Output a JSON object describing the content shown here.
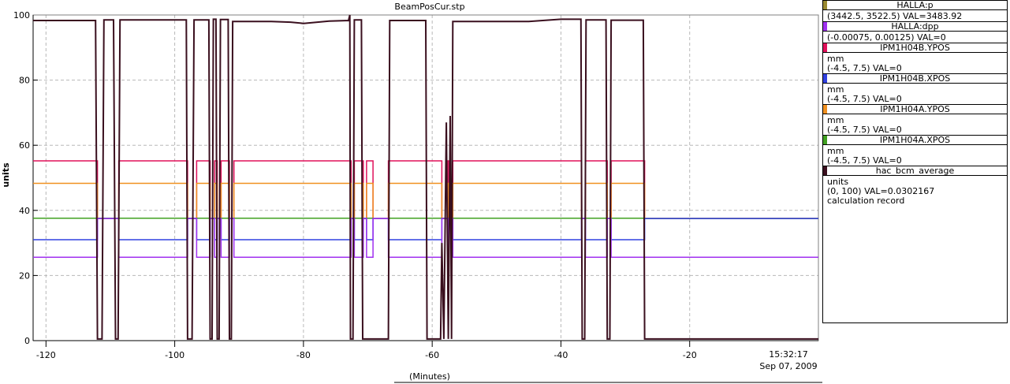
{
  "chart_data": {
    "type": "line",
    "title": "BeamPosCur.stp",
    "xlabel": "(Minutes)",
    "ylabel": "units",
    "xlim": [
      -122,
      0
    ],
    "ylim": [
      0,
      100
    ],
    "x_ticks": [
      -120,
      -100,
      -80,
      -60,
      -40,
      -20
    ],
    "y_ticks": [
      0,
      20,
      40,
      60,
      80,
      100
    ],
    "timestamp_time": "15:32:17",
    "timestamp_date": "Sep 07, 2009",
    "grid": true,
    "series": [
      {
        "name": "IPM1H04B.YPOS",
        "color": "#e0105a",
        "level": 55.2,
        "gaps": [
          [
            -112,
            -108.7
          ],
          [
            -98,
            -96.6
          ],
          [
            -94.5,
            -93.8
          ],
          [
            -93.4,
            -92.8
          ],
          [
            -91.5,
            -90.8
          ],
          [
            -72.6,
            -72.1
          ],
          [
            -70.7,
            -70.2
          ],
          [
            -69.2,
            -66.8
          ],
          [
            -58.5,
            -57.6
          ],
          [
            -57.4,
            -56.8
          ],
          [
            -36.8,
            -36.2
          ],
          [
            -32.8,
            -32.2
          ]
        ],
        "gap_level": 37.5,
        "end": -27
      },
      {
        "name": "IPM1H04A.YPOS",
        "color": "#f09020",
        "level": 48.3,
        "gaps": [
          [
            -112,
            -108.7
          ],
          [
            -98,
            -96.6
          ],
          [
            -94.5,
            -93.8
          ],
          [
            -93.4,
            -92.8
          ],
          [
            -91.5,
            -90.8
          ],
          [
            -72.6,
            -72.1
          ],
          [
            -70.7,
            -70.2
          ],
          [
            -69.2,
            -66.8
          ],
          [
            -58.5,
            -57.6
          ],
          [
            -57.4,
            -56.8
          ],
          [
            -36.8,
            -36.2
          ],
          [
            -32.8,
            -32.2
          ]
        ],
        "gap_level": 37.5,
        "end": -27
      },
      {
        "name": "IPM1H04A.XPOS",
        "color": "#40a020",
        "level": 37.6,
        "gaps": [
          [
            -72.6,
            -72.1
          ],
          [
            -69.2,
            -66.8
          ]
        ],
        "gap_level": 37.5,
        "end": -27
      },
      {
        "name": "IPM1H04B.XPOS",
        "color": "#3040e0",
        "level": 31.0,
        "gaps": [
          [
            -112,
            -108.7
          ],
          [
            -98,
            -96.6
          ],
          [
            -94.5,
            -93.8
          ],
          [
            -93.4,
            -92.8
          ],
          [
            -91.5,
            -90.8
          ],
          [
            -72.6,
            -72.1
          ],
          [
            -70.7,
            -70.2
          ],
          [
            -69.2,
            -66.8
          ],
          [
            -58.5,
            -57.6
          ],
          [
            -57.4,
            -56.8
          ],
          [
            -36.8,
            -36.2
          ],
          [
            -32.8,
            -32.2
          ]
        ],
        "gap_level": 37.5,
        "end": -27
      },
      {
        "name": "HALLA:dpp",
        "color": "#a030f0",
        "level": 25.6,
        "gaps": [
          [
            -112,
            -108.7
          ],
          [
            -98,
            -96.6
          ],
          [
            -94.5,
            -93.8
          ],
          [
            -93.4,
            -92.8
          ],
          [
            -91.5,
            -90.8
          ],
          [
            -72.6,
            -72.1
          ],
          [
            -70.7,
            -70.2
          ],
          [
            -69.2,
            -66.8
          ],
          [
            -58.5,
            -57.6
          ],
          [
            -57.4,
            -56.8
          ],
          [
            -36.8,
            -36.2
          ],
          [
            -32.8,
            -32.2
          ]
        ],
        "gap_level": 37.5,
        "end": 0
      },
      {
        "name": "hac_bcm_average",
        "color": "#3a0f1e",
        "points": [
          [
            -122,
            98.3
          ],
          [
            -112.3,
            98.3
          ],
          [
            -112,
            0.5
          ],
          [
            -111.3,
            0.5
          ],
          [
            -111,
            98.5
          ],
          [
            -109.5,
            98.5
          ],
          [
            -109.2,
            0.5
          ],
          [
            -108.8,
            0.5
          ],
          [
            -108.5,
            98.5
          ],
          [
            -98.2,
            98.5
          ],
          [
            -98,
            0.5
          ],
          [
            -97.3,
            0.5
          ],
          [
            -97,
            98.5
          ],
          [
            -94.7,
            98.5
          ],
          [
            -94.5,
            0.5
          ],
          [
            -94.2,
            0.5
          ],
          [
            -94,
            98.7
          ],
          [
            -93.6,
            98.7
          ],
          [
            -93.4,
            0.5
          ],
          [
            -93.1,
            0.5
          ],
          [
            -92.9,
            98.6
          ],
          [
            -91.7,
            98.6
          ],
          [
            -91.5,
            0.5
          ],
          [
            -91.2,
            0.5
          ],
          [
            -91,
            98
          ],
          [
            -85,
            98
          ],
          [
            -82,
            97.8
          ],
          [
            -80,
            97.4
          ],
          [
            -76,
            98.1
          ],
          [
            -73,
            98.3
          ],
          [
            -72.8,
            100
          ],
          [
            -72.7,
            0.5
          ],
          [
            -72.3,
            0.5
          ],
          [
            -72.1,
            98.5
          ],
          [
            -71,
            98.5
          ],
          [
            -70.8,
            0.5
          ],
          [
            -66.8,
            0.5
          ],
          [
            -66.6,
            98.3
          ],
          [
            -61,
            98.3
          ],
          [
            -60.8,
            0.5
          ],
          [
            -58.7,
            0.5
          ],
          [
            -58.5,
            30
          ],
          [
            -58.2,
            0.5
          ],
          [
            -57.8,
            67
          ],
          [
            -57.5,
            0.5
          ],
          [
            -57.2,
            69
          ],
          [
            -57,
            0.5
          ],
          [
            -56.8,
            98
          ],
          [
            -45,
            98
          ],
          [
            -40,
            98.7
          ],
          [
            -36.9,
            98.7
          ],
          [
            -36.7,
            0.5
          ],
          [
            -36.3,
            0.5
          ],
          [
            -36.1,
            98.5
          ],
          [
            -33,
            98.5
          ],
          [
            -32.8,
            0.5
          ],
          [
            -32.4,
            0.5
          ],
          [
            -32.2,
            98.4
          ],
          [
            -27.2,
            98.4
          ],
          [
            -27,
            0.5
          ],
          [
            0,
            0.5
          ]
        ]
      }
    ]
  },
  "legend": [
    {
      "id": "halla-p",
      "title": "HALLA:p",
      "color": "#9a8a30",
      "lines": [
        "(3442.5, 3522.5) VAL=3483.92"
      ]
    },
    {
      "id": "halla-dpp",
      "title": "HALLA:dpp",
      "color": "#a030f0",
      "lines": [
        "(-0.00075, 0.00125) VAL=0"
      ]
    },
    {
      "id": "ipm1h04b-ypos",
      "title": "IPM1H04B.YPOS",
      "color": "#e0105a",
      "lines": [
        "mm",
        "(-4.5, 7.5) VAL=0"
      ]
    },
    {
      "id": "ipm1h04b-xpos",
      "title": "IPM1H04B.XPOS",
      "color": "#3040e0",
      "lines": [
        "mm",
        "(-4.5, 7.5) VAL=0"
      ]
    },
    {
      "id": "ipm1h04a-ypos",
      "title": "IPM1H04A.YPOS",
      "color": "#f09020",
      "lines": [
        "mm",
        "(-4.5, 7.5) VAL=0"
      ]
    },
    {
      "id": "ipm1h04a-xpos",
      "title": "IPM1H04A.XPOS",
      "color": "#40a020",
      "lines": [
        "mm",
        "(-4.5, 7.5) VAL=0"
      ]
    },
    {
      "id": "hac-bcm-average",
      "title": "hac_bcm_average",
      "color": "#3a0f1e",
      "lines": [
        "units",
        "(0, 100) VAL=0.0302167",
        "calculation record"
      ]
    }
  ]
}
